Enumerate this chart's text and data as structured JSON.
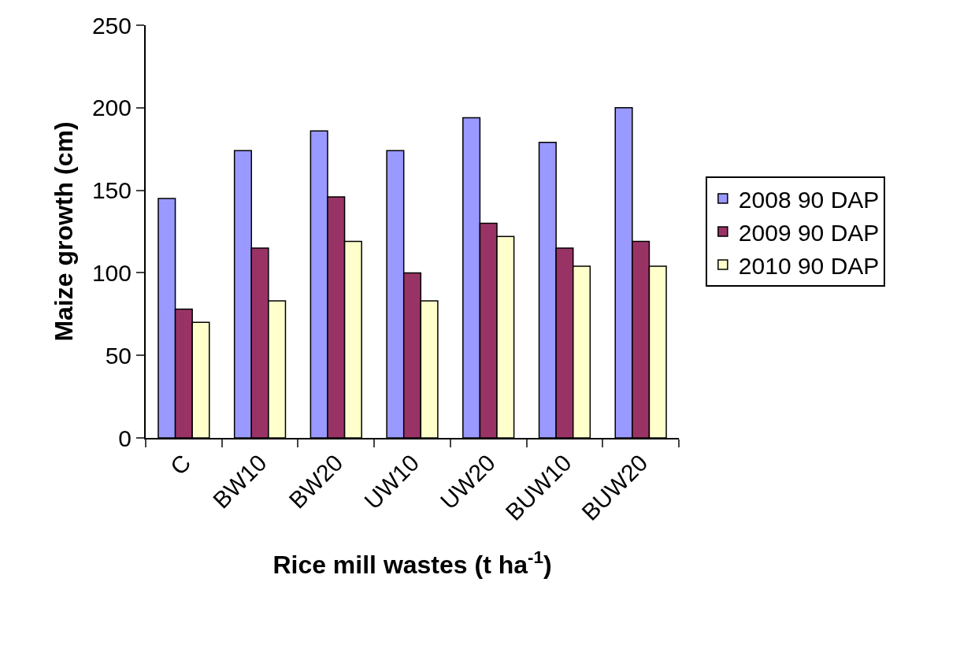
{
  "chart_data": {
    "type": "bar",
    "xlabel": "Rice mill wastes (t ha$^{-1}$)",
    "ylabel": "Maize growth (cm)",
    "categories": [
      "C",
      "BW10",
      "BW20",
      "UW10",
      "UW20",
      "BUW10",
      "BUW20"
    ],
    "series": [
      {
        "name": "2008 90 DAP",
        "color": "#9999ff",
        "values": [
          145,
          174,
          186,
          174,
          194,
          179,
          200
        ]
      },
      {
        "name": "2009 90 DAP",
        "color": "#993366",
        "values": [
          78,
          115,
          146,
          100,
          130,
          115,
          119
        ]
      },
      {
        "name": "2010 90 DAP",
        "color": "#ffffcc",
        "values": [
          70,
          83,
          119,
          83,
          122,
          104,
          104
        ]
      }
    ],
    "ylim": [
      0,
      250
    ],
    "yticks": [
      0,
      50,
      100,
      150,
      200,
      250
    ],
    "legend": "right"
  }
}
